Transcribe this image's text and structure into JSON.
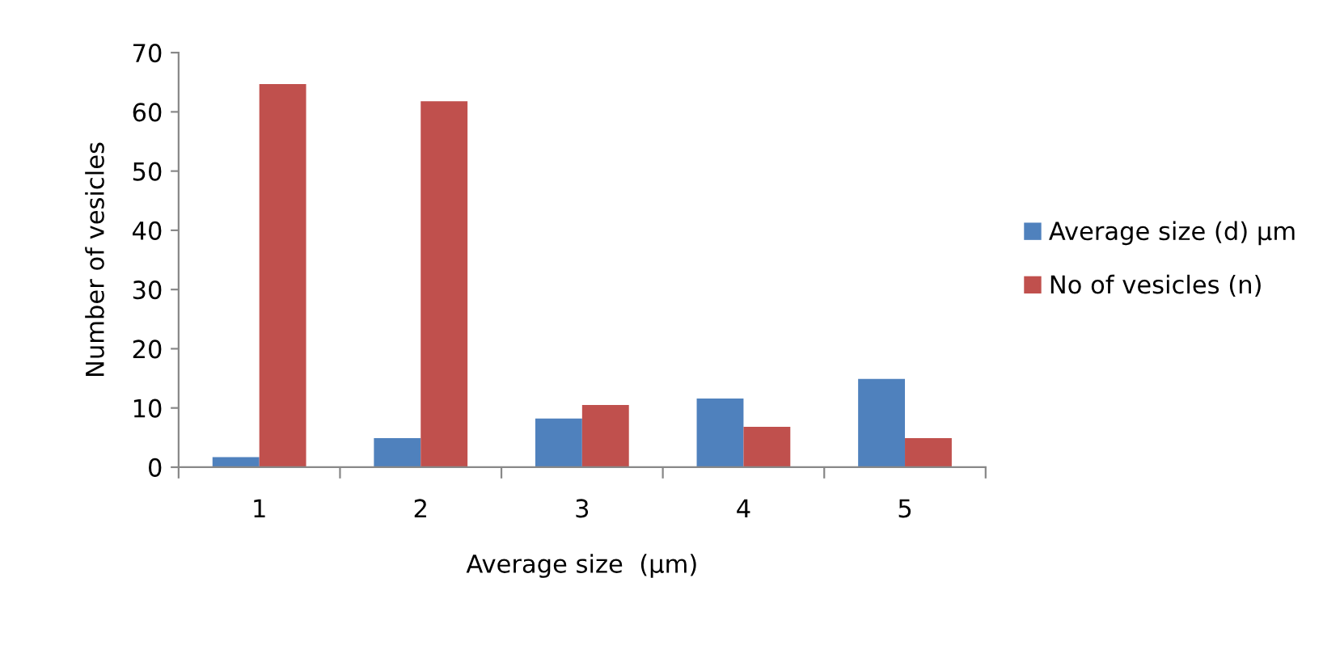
{
  "chart_data": {
    "type": "bar",
    "xlabel": "Average size  (µm)",
    "ylabel": "Number of vesicles",
    "categories": [
      "1",
      "2",
      "3",
      "4",
      "5"
    ],
    "series": [
      {
        "name": "Average size (d) µm",
        "color": "#4f81bd",
        "values": [
          1.7,
          4.9,
          8.2,
          11.6,
          14.9
        ]
      },
      {
        "name": "No of vesicles (n)",
        "color": "#c0504d",
        "values": [
          64.7,
          61.8,
          10.5,
          6.8,
          4.9
        ]
      }
    ],
    "ylim": [
      0,
      70
    ],
    "yticks": [
      0,
      10,
      20,
      30,
      40,
      50,
      60,
      70
    ],
    "grid": false,
    "legend": "right"
  }
}
